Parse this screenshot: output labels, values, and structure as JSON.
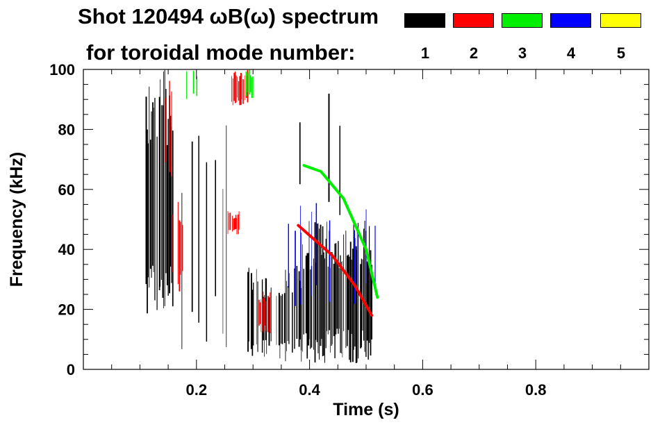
{
  "header": {
    "title_line1": "Shot 120494 ωB(ω) spectrum",
    "title_line2": "for toroidal mode number:"
  },
  "chart_data": {
    "type": "heatmap",
    "title": "Shot 120494 ωB(ω) spectrum for toroidal mode number:",
    "xlabel": "Time (s)",
    "ylabel": "Frequency (kHz)",
    "xlim": [
      0.0,
      1.0
    ],
    "ylim": [
      0,
      100
    ],
    "x_ticks": [
      {
        "value": 0.2,
        "label": "0.2"
      },
      {
        "value": 0.4,
        "label": "0.4"
      },
      {
        "value": 0.6,
        "label": "0.6"
      },
      {
        "value": 0.8,
        "label": "0.8"
      }
    ],
    "y_ticks": [
      {
        "value": 0,
        "label": "0"
      },
      {
        "value": 20,
        "label": "20"
      },
      {
        "value": 40,
        "label": "40"
      },
      {
        "value": 60,
        "label": "60"
      },
      {
        "value": 80,
        "label": "80"
      },
      {
        "value": 100,
        "label": "100"
      }
    ],
    "grid": false,
    "legend_position": "top-right",
    "legend": [
      {
        "mode": 1,
        "label": "1",
        "color": "#000000"
      },
      {
        "mode": 2,
        "label": "2",
        "color": "#ff0000"
      },
      {
        "mode": 3,
        "label": "3",
        "color": "#00ee00"
      },
      {
        "mode": 4,
        "label": "4",
        "color": "#0000ff"
      },
      {
        "mode": 5,
        "label": "5",
        "color": "#ffff00"
      }
    ],
    "regions": [
      {
        "mode": 1,
        "t": [
          0.11,
          0.16
        ],
        "f": [
          15,
          100
        ],
        "density": 0.85
      },
      {
        "mode": 1,
        "t": [
          0.16,
          0.26
        ],
        "f": [
          5,
          85
        ],
        "density": 0.15
      },
      {
        "mode": 1,
        "t": [
          0.29,
          0.39
        ],
        "f": [
          2,
          35
        ],
        "density": 0.55
      },
      {
        "mode": 1,
        "t": [
          0.385,
          0.51
        ],
        "f": [
          2,
          50
        ],
        "density": 0.95
      },
      {
        "mode": 1,
        "t": [
          0.38,
          0.48
        ],
        "f": [
          50,
          97
        ],
        "density": 0.06
      },
      {
        "mode": 2,
        "t": [
          0.12,
          0.16
        ],
        "f": [
          60,
          100
        ],
        "density": 0.15
      },
      {
        "mode": 2,
        "t": [
          0.155,
          0.175
        ],
        "f": [
          25,
          60
        ],
        "density": 0.6
      },
      {
        "mode": 2,
        "t": [
          0.255,
          0.275
        ],
        "f": [
          45,
          53
        ],
        "density": 0.8
      },
      {
        "mode": 2,
        "t": [
          0.26,
          0.29
        ],
        "f": [
          88,
          100
        ],
        "density": 0.8
      },
      {
        "mode": 2,
        "t": [
          0.31,
          0.33
        ],
        "f": [
          12,
          26
        ],
        "density": 0.7
      },
      {
        "mode": 3,
        "t": [
          0.285,
          0.3
        ],
        "f": [
          90,
          100
        ],
        "density": 0.85
      },
      {
        "mode": 3,
        "t": [
          0.18,
          0.2
        ],
        "f": [
          90,
          100
        ],
        "density": 0.25
      },
      {
        "mode": 4,
        "t": [
          0.36,
          0.52
        ],
        "f": [
          20,
          56
        ],
        "density": 0.08
      }
    ],
    "lines": [
      {
        "mode": 2,
        "points": [
          [
            0.38,
            48
          ],
          [
            0.44,
            38
          ],
          [
            0.48,
            28
          ],
          [
            0.51,
            18
          ]
        ]
      },
      {
        "mode": 3,
        "points": [
          [
            0.39,
            68
          ],
          [
            0.42,
            66
          ],
          [
            0.46,
            57
          ],
          [
            0.5,
            40
          ],
          [
            0.52,
            24
          ]
        ]
      }
    ]
  }
}
